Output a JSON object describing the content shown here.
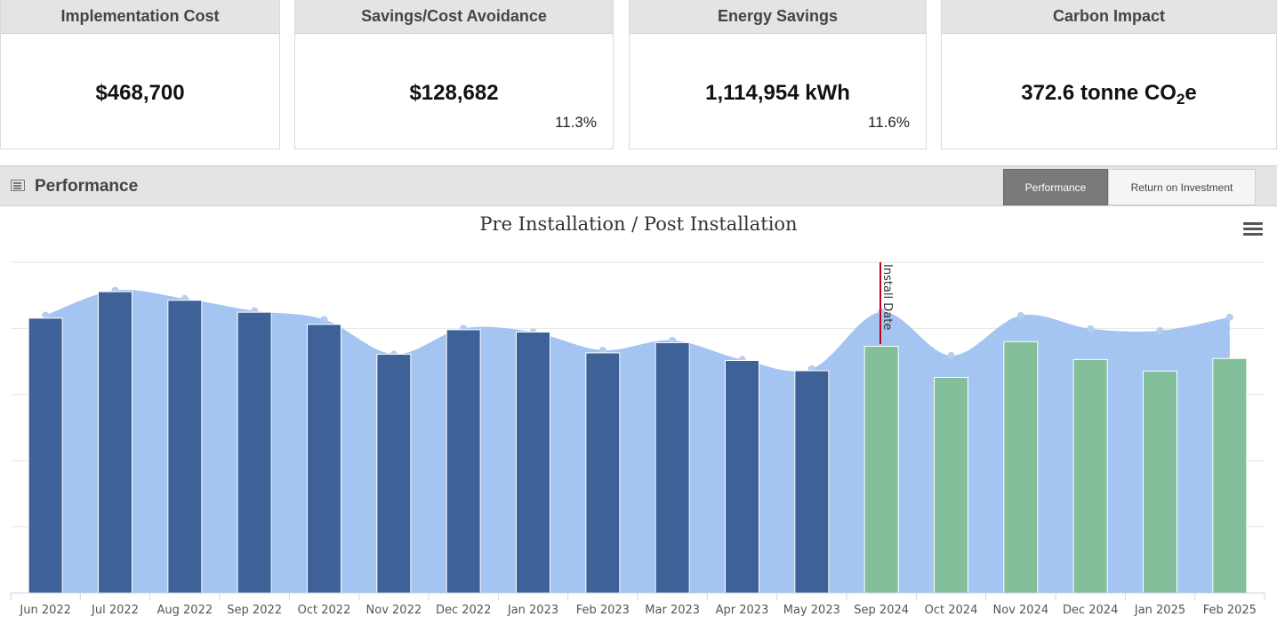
{
  "kpis": [
    {
      "title": "Implementation Cost",
      "value": "$468,700",
      "pct": ""
    },
    {
      "title": "Savings/Cost Avoidance",
      "value": "$128,682",
      "pct": "11.3%"
    },
    {
      "title": "Energy Savings",
      "value": "1,114,954 kWh",
      "pct": "11.6%"
    },
    {
      "title": "Carbon Impact",
      "value_main": "372.6 tonne CO",
      "value_sub": "2",
      "value_tail": "e",
      "pct": ""
    }
  ],
  "performance_bar": {
    "title": "Performance",
    "icon": "list-panel-icon",
    "toggle_active": "Performance",
    "toggle_inactive": "Return on Investment"
  },
  "chart": {
    "title": "Pre Installation / Post Installation",
    "menu_icon": "hamburger-menu-icon"
  },
  "chart_data": {
    "type": "bar",
    "title": "Pre Installation / Post Installation",
    "categories": [
      "Jun 2022",
      "Jul 2022",
      "Aug 2022",
      "Sep 2022",
      "Oct 2022",
      "Nov 2022",
      "Dec 2022",
      "Jan 2023",
      "Feb 2023",
      "Mar 2023",
      "Apr 2023",
      "May 2023",
      "Sep 2024",
      "Oct 2024",
      "Nov 2024",
      "Dec 2024",
      "Jan 2025",
      "Feb 2025"
    ],
    "bars": [
      83.1,
      91.1,
      88.5,
      84.9,
      81.2,
      72.2,
      79.6,
      78.9,
      72.6,
      75.7,
      70.3,
      67.2,
      74.6,
      65.2,
      76.0,
      70.6,
      67.1,
      70.9
    ],
    "baseline_area": [
      84.0,
      91.5,
      89.0,
      85.3,
      82.7,
      72.2,
      80.0,
      78.9,
      73.4,
      76.4,
      70.6,
      67.8,
      85.0,
      71.8,
      83.9,
      79.9,
      79.3,
      83.4
    ],
    "post_start_index": 12,
    "colors": {
      "pre_bar": "#3e6197",
      "post_bar": "#82bf9a",
      "area": "#a4c4f2",
      "area_marker": "#b3cdf3",
      "install_line": "#c0001a"
    },
    "ylim": [
      0,
      100
    ],
    "grid": true,
    "annotation": {
      "label": "Install Date",
      "between_index": [
        11,
        12
      ]
    }
  }
}
